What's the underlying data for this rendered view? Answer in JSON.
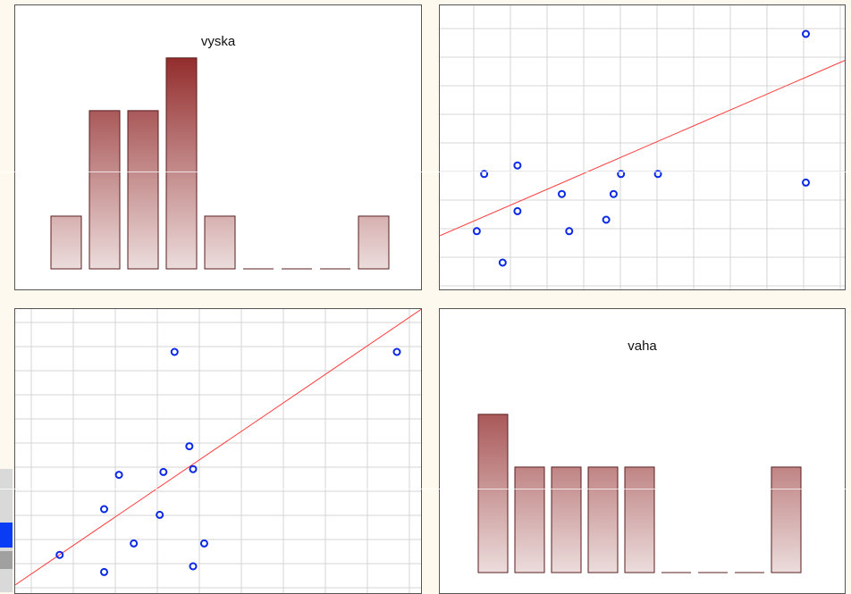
{
  "colors": {
    "bar_top": "#8f2424",
    "bar_bottom": "#ecdcdc",
    "bar_stroke": "#5a1e1e",
    "grid": "#d4d4d4",
    "point": "#0a28e6",
    "fit_line": "#ff3b3b"
  },
  "chart_data": [
    {
      "type": "bar",
      "title": "vyska",
      "values": [
        1,
        3,
        3,
        4,
        1,
        0,
        0,
        0,
        1
      ],
      "ylim": [
        0,
        4.2
      ]
    },
    {
      "type": "scatter",
      "grid": true,
      "xlim": [
        0,
        11
      ],
      "ylim": [
        0,
        10
      ],
      "points": [
        [
          1.0,
          2.1
        ],
        [
          1.7,
          1.0
        ],
        [
          1.2,
          4.1
        ],
        [
          2.1,
          2.8
        ],
        [
          2.1,
          4.4
        ],
        [
          3.3,
          3.4
        ],
        [
          3.5,
          2.1
        ],
        [
          4.5,
          2.5
        ],
        [
          4.7,
          3.4
        ],
        [
          4.9,
          4.1
        ],
        [
          5.9,
          4.1
        ],
        [
          9.9,
          9.0
        ],
        [
          9.9,
          3.8
        ]
      ],
      "fit_line": {
        "intercept": 1.94,
        "slope": 0.56
      }
    },
    {
      "type": "scatter",
      "grid": true,
      "xlim": [
        0,
        11
      ],
      "ylim": [
        0,
        10
      ],
      "points": [
        [
          1.2,
          1.4
        ],
        [
          2.4,
          0.8
        ],
        [
          2.4,
          3.0
        ],
        [
          2.8,
          4.2
        ],
        [
          3.2,
          1.8
        ],
        [
          3.9,
          2.8
        ],
        [
          4.0,
          4.3
        ],
        [
          4.3,
          8.5
        ],
        [
          4.7,
          5.2
        ],
        [
          4.8,
          4.4
        ],
        [
          5.1,
          1.8
        ],
        [
          4.8,
          1.0
        ],
        [
          10.3,
          8.5
        ]
      ],
      "fit_line": {
        "intercept": 0.35,
        "slope": 0.88
      }
    },
    {
      "type": "bar",
      "title": "vaha",
      "values": [
        3,
        2,
        2,
        2,
        2,
        0,
        0,
        0,
        2
      ],
      "ylim": [
        0,
        4.2
      ]
    }
  ]
}
